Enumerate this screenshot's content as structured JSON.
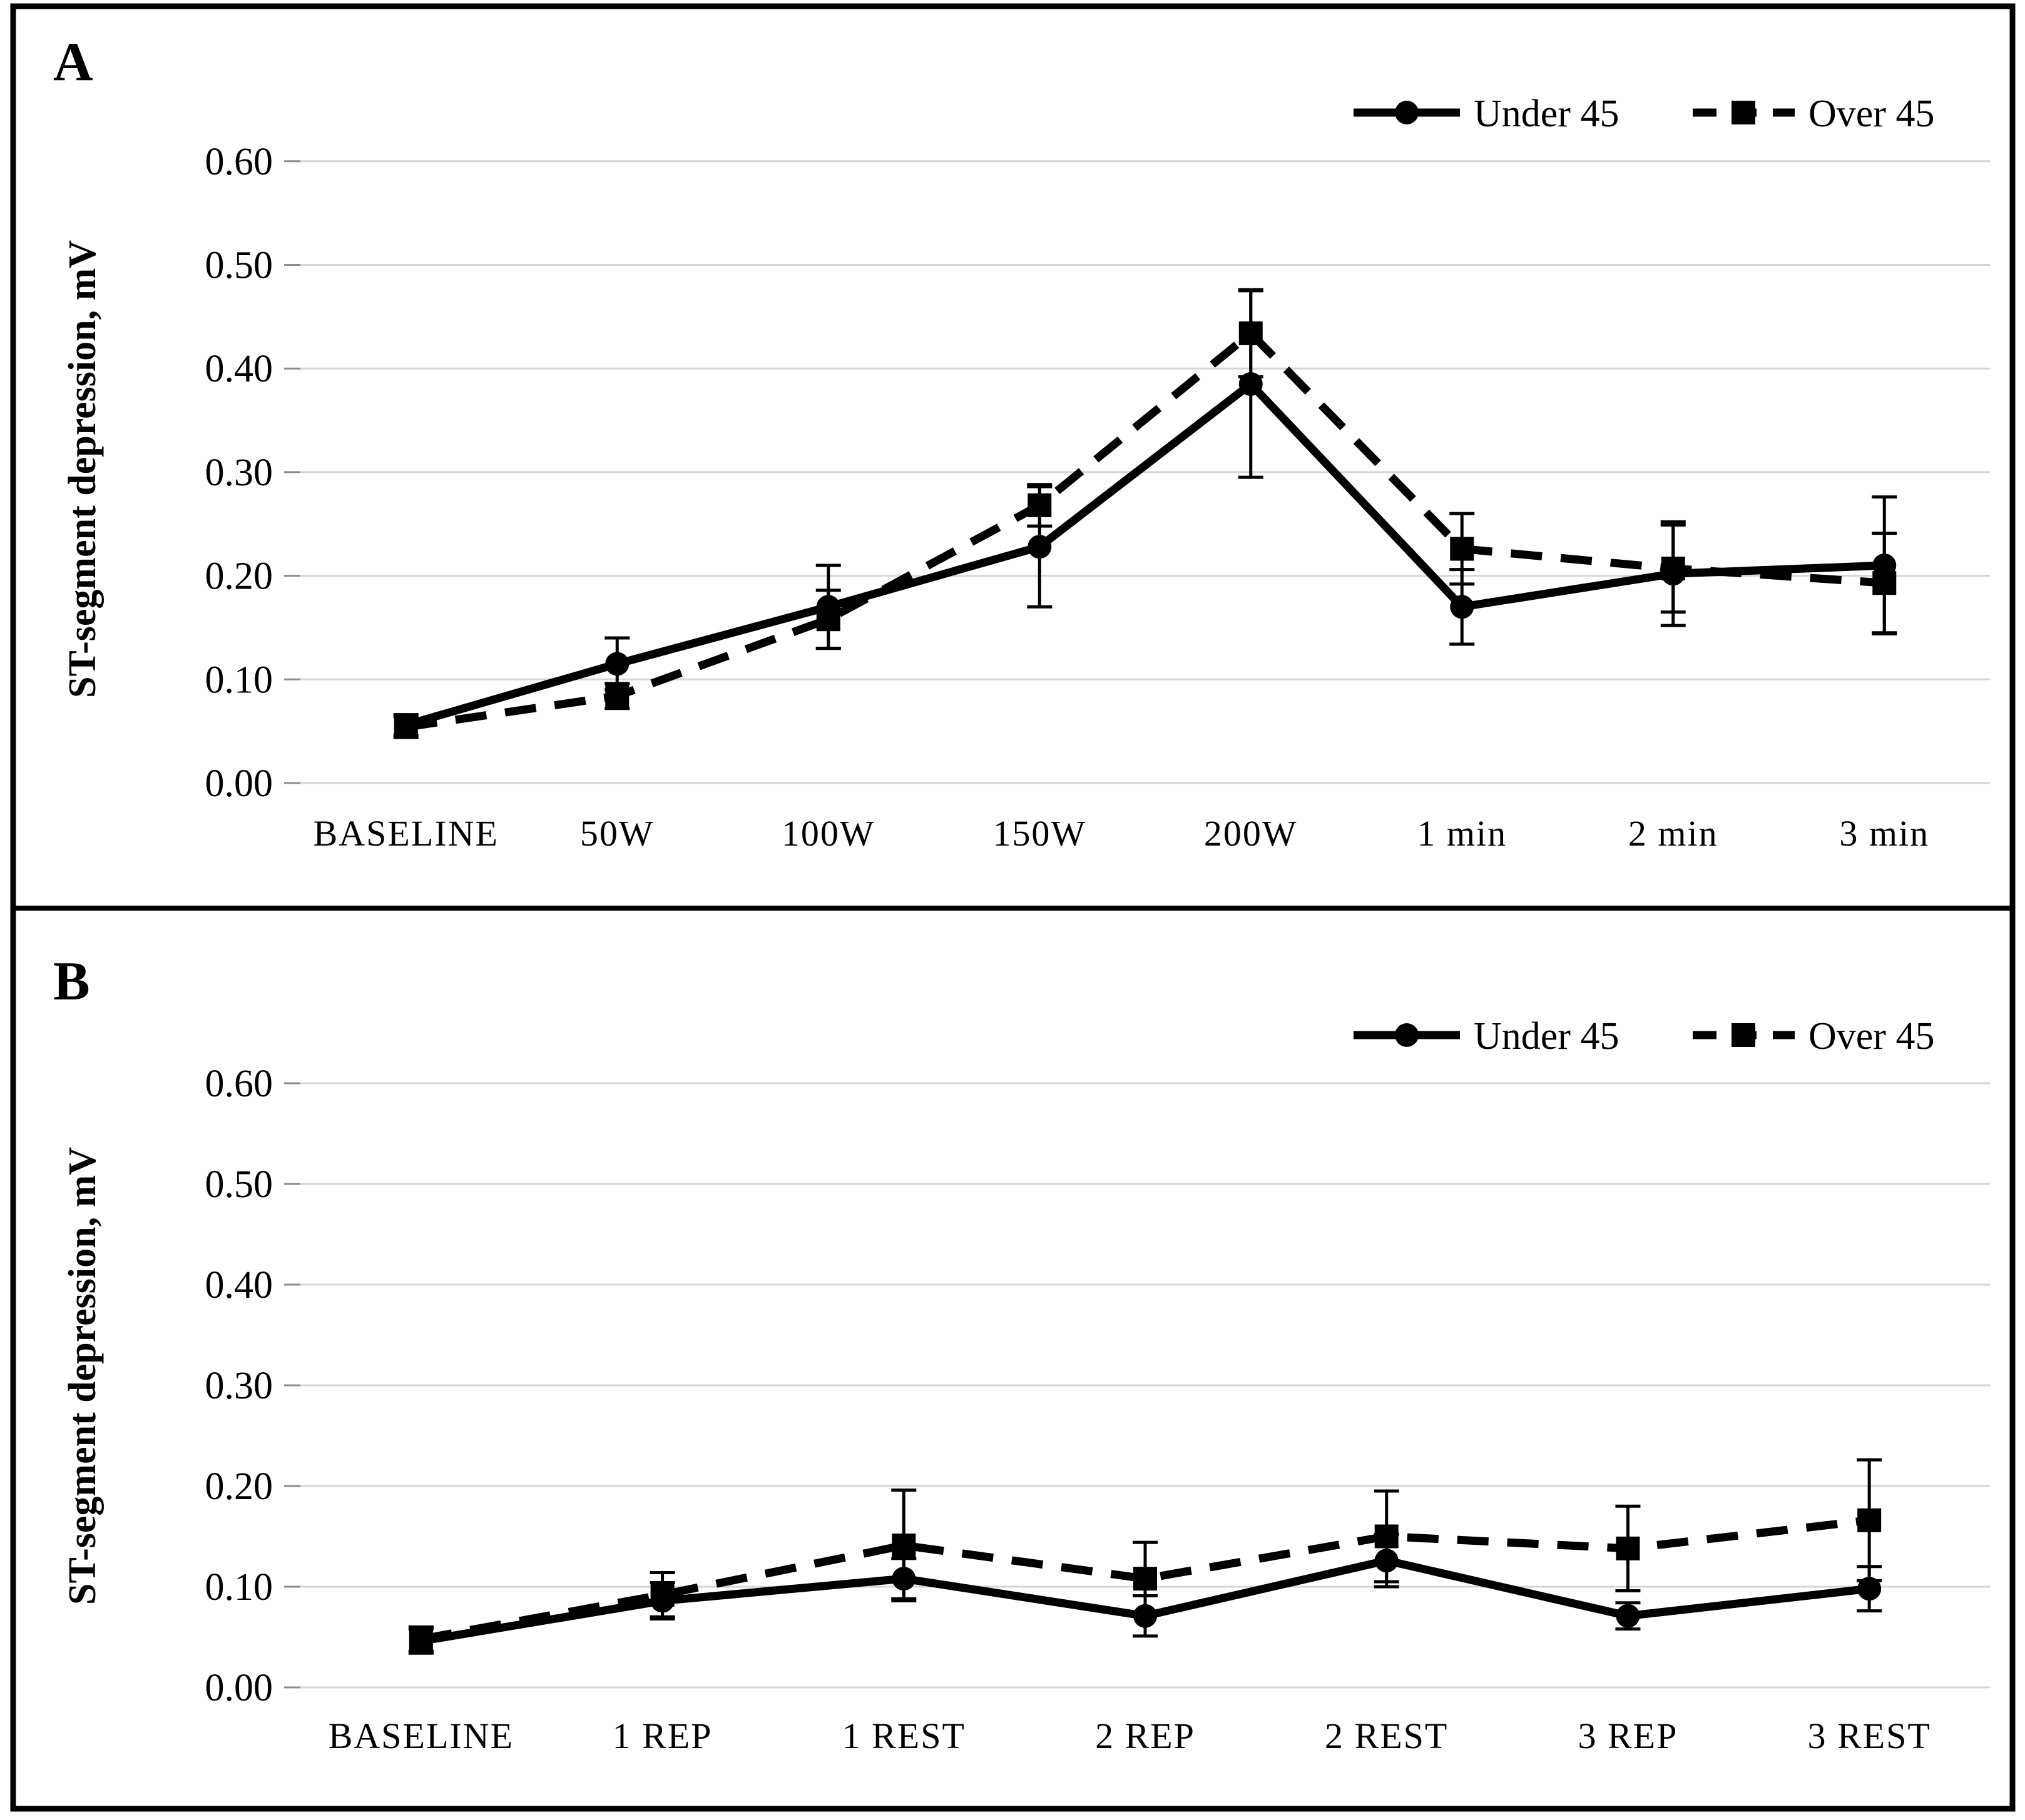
{
  "figure": {
    "background_color": "#ffffff",
    "border_color": "#000000",
    "gridline_color": "#d6d6d6",
    "tick_color": "#8c8c8c",
    "series_color": "#000000"
  },
  "chart_data": [
    {
      "type": "line",
      "panel_label": "A",
      "title": "",
      "xlabel": "",
      "ylabel": "ST-segment depression, mV",
      "ylim": [
        0.0,
        0.65
      ],
      "yticks": [
        "0.00",
        "0.10",
        "0.20",
        "0.30",
        "0.40",
        "0.50",
        "0.60"
      ],
      "grid": "horizontal",
      "legend_position": "top-right",
      "error_bars": true,
      "categories": [
        "BASELINE",
        "50W",
        "100W",
        "150W",
        "200W",
        "1 min",
        "2 min",
        "3 min"
      ],
      "series": [
        {
          "name": "Under 45",
          "line_style": "solid",
          "marker": "circle",
          "color": "#000000",
          "values": [
            0.056,
            0.115,
            0.17,
            0.228,
            0.385,
            0.17,
            0.202,
            0.21
          ],
          "errors": [
            0.01,
            0.025,
            0.04,
            0.058,
            0.09,
            0.036,
            0.05,
            0.066
          ]
        },
        {
          "name": "Over 45",
          "line_style": "dashed",
          "marker": "square",
          "color": "#000000",
          "values": [
            0.054,
            0.084,
            0.158,
            0.268,
            0.434,
            0.226,
            0.207,
            0.193
          ],
          "errors": [
            0.01,
            0.012,
            0.028,
            0.02,
            0.042,
            0.034,
            0.042,
            0.048
          ]
        }
      ]
    },
    {
      "type": "line",
      "panel_label": "B",
      "title": "",
      "xlabel": "",
      "ylabel": "ST-segment depression, mV",
      "ylim": [
        0.0,
        0.65
      ],
      "yticks": [
        "0.00",
        "0.10",
        "0.20",
        "0.30",
        "0.40",
        "0.50",
        "0.60"
      ],
      "grid": "horizontal",
      "legend_position": "top-right",
      "error_bars": true,
      "categories": [
        "BASELINE",
        "1 REP",
        "1 REST",
        "2 REP",
        "2 REST",
        "3 REP",
        "3 REST"
      ],
      "series": [
        {
          "name": "Under 45",
          "line_style": "solid",
          "marker": "circle",
          "color": "#000000",
          "values": [
            0.046,
            0.086,
            0.108,
            0.071,
            0.126,
            0.071,
            0.098
          ],
          "errors": [
            0.012,
            0.018,
            0.02,
            0.02,
            0.026,
            0.013,
            0.022
          ]
        },
        {
          "name": "Over 45",
          "line_style": "dashed",
          "marker": "square",
          "color": "#000000",
          "values": [
            0.048,
            0.092,
            0.141,
            0.108,
            0.15,
            0.138,
            0.166
          ],
          "errors": [
            0.012,
            0.022,
            0.055,
            0.036,
            0.045,
            0.042,
            0.06
          ]
        }
      ]
    }
  ]
}
